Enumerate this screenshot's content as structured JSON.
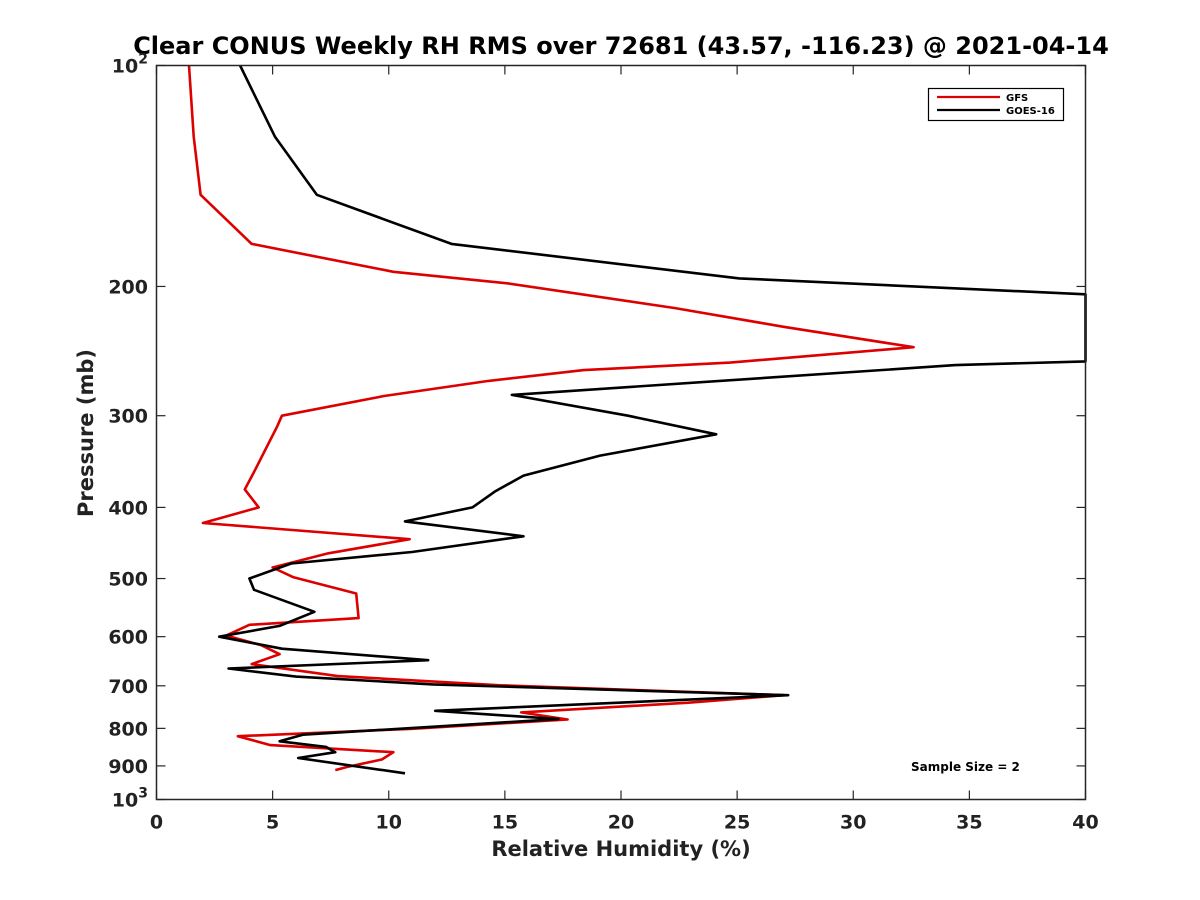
{
  "chart_data": {
    "type": "line",
    "title": "Clear CONUS Weekly RH RMS over 72681 (43.57, -116.23) @ 2021-04-14",
    "xlabel": "Relative Humidity (%)",
    "ylabel": "Pressure (mb)",
    "xlim": [
      0,
      40
    ],
    "ylim": [
      100,
      1000
    ],
    "y_scale": "log",
    "y_reversed": true,
    "grid": false,
    "legend_position": "top-right",
    "x_ticks": [
      "0",
      "5",
      "10",
      "15",
      "20",
      "25",
      "30",
      "35",
      "40"
    ],
    "x_tick_values": [
      0,
      5,
      10,
      15,
      20,
      25,
      30,
      35,
      40
    ],
    "y_tick_values": [
      100,
      200,
      300,
      400,
      500,
      600,
      700,
      800,
      900,
      1000
    ],
    "y_tick_labels": [
      {
        "value": 100,
        "base": "10",
        "exp": "2"
      },
      {
        "value": 200,
        "base": "200",
        "exp": ""
      },
      {
        "value": 300,
        "base": "300",
        "exp": ""
      },
      {
        "value": 400,
        "base": "400",
        "exp": ""
      },
      {
        "value": 500,
        "base": "500",
        "exp": ""
      },
      {
        "value": 600,
        "base": "600",
        "exp": ""
      },
      {
        "value": 700,
        "base": "700",
        "exp": ""
      },
      {
        "value": 800,
        "base": "800",
        "exp": ""
      },
      {
        "value": 900,
        "base": "900",
        "exp": ""
      },
      {
        "value": 1000,
        "base": "10",
        "exp": "3"
      }
    ],
    "annotation": "Sample Size = 2",
    "series": [
      {
        "name": "GFS",
        "color": "#dd0000",
        "points": [
          [
            1.4,
            100
          ],
          [
            1.6,
            125
          ],
          [
            1.9,
            150
          ],
          [
            4.1,
            175
          ],
          [
            10.2,
            191
          ],
          [
            15.1,
            198
          ],
          [
            22.3,
            214
          ],
          [
            27.0,
            227
          ],
          [
            32.6,
            242
          ],
          [
            24.7,
            254
          ],
          [
            18.4,
            260
          ],
          [
            14.3,
            269
          ],
          [
            9.8,
            282
          ],
          [
            5.4,
            300
          ],
          [
            5.2,
            310
          ],
          [
            4.7,
            333
          ],
          [
            4.2,
            358
          ],
          [
            3.8,
            378
          ],
          [
            4.4,
            400
          ],
          [
            2.0,
            420
          ],
          [
            10.9,
            442
          ],
          [
            7.4,
            462
          ],
          [
            5.0,
            483
          ],
          [
            5.9,
            498
          ],
          [
            8.6,
            524
          ],
          [
            8.7,
            566
          ],
          [
            4.0,
            578
          ],
          [
            3.0,
            598
          ],
          [
            4.5,
            616
          ],
          [
            5.3,
            634
          ],
          [
            4.1,
            654
          ],
          [
            7.8,
            679
          ],
          [
            14.8,
            699
          ],
          [
            27.0,
            721
          ],
          [
            22.9,
            738
          ],
          [
            15.7,
            761
          ],
          [
            17.7,
            778
          ],
          [
            11.0,
            801
          ],
          [
            3.5,
            820
          ],
          [
            4.9,
            843
          ],
          [
            10.2,
            862
          ],
          [
            9.7,
            882
          ],
          [
            8.2,
            903
          ],
          [
            7.7,
            912
          ]
        ]
      },
      {
        "name": "GOES-16",
        "color": "#000000",
        "points": [
          [
            3.6,
            100
          ],
          [
            5.1,
            125
          ],
          [
            6.9,
            150
          ],
          [
            12.7,
            175
          ],
          [
            25.1,
            195
          ],
          [
            40.0,
            205
          ],
          [
            40.0,
            253
          ],
          [
            34.4,
            256
          ],
          [
            15.3,
            281
          ],
          [
            20.3,
            300
          ],
          [
            24.1,
            318
          ],
          [
            19.1,
            340
          ],
          [
            15.8,
            362
          ],
          [
            14.6,
            380
          ],
          [
            13.6,
            400
          ],
          [
            10.7,
            418
          ],
          [
            15.8,
            438
          ],
          [
            11.0,
            460
          ],
          [
            5.8,
            477
          ],
          [
            4.0,
            500
          ],
          [
            4.2,
            518
          ],
          [
            6.8,
            555
          ],
          [
            5.3,
            580
          ],
          [
            2.7,
            600
          ],
          [
            5.4,
            623
          ],
          [
            11.7,
            646
          ],
          [
            3.1,
            663
          ],
          [
            6.0,
            680
          ],
          [
            11.9,
            697
          ],
          [
            27.2,
            721
          ],
          [
            12.0,
            757
          ],
          [
            17.3,
            777
          ],
          [
            6.3,
            816
          ],
          [
            5.3,
            833
          ],
          [
            7.3,
            848
          ],
          [
            7.7,
            862
          ],
          [
            6.1,
            878
          ],
          [
            10.7,
            921
          ]
        ]
      }
    ]
  }
}
